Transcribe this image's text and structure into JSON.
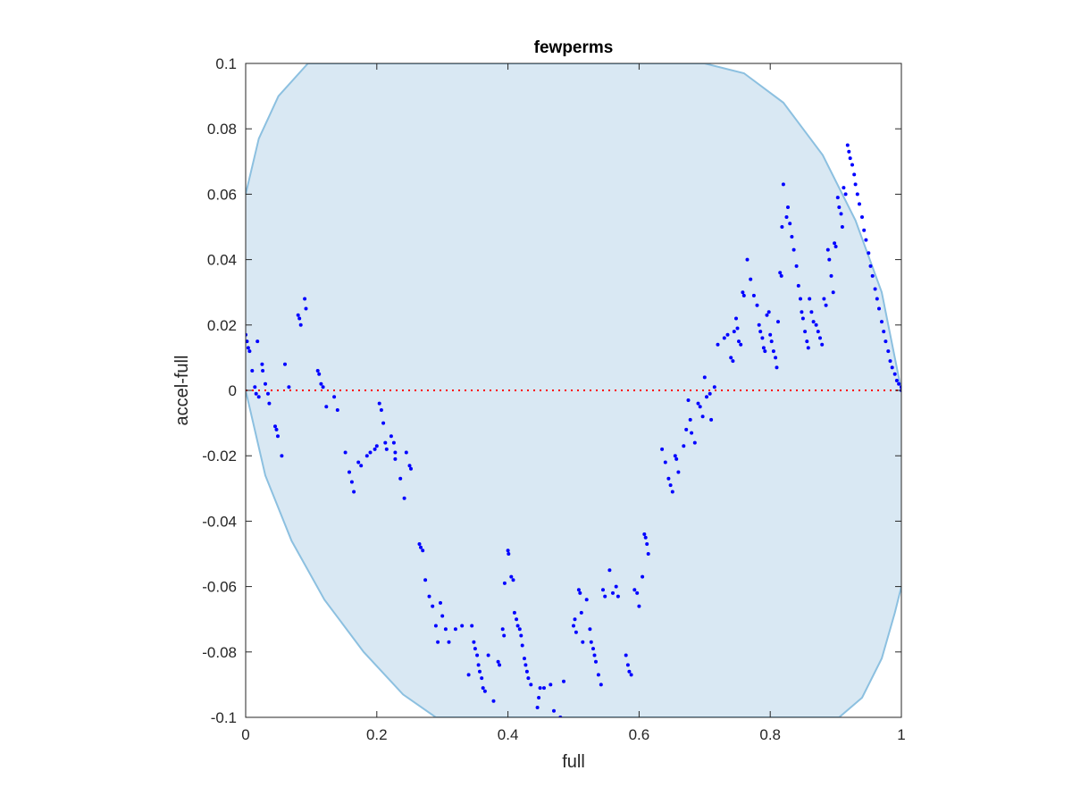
{
  "chart_data": {
    "type": "scatter",
    "title": "fewperms",
    "xlabel": "full",
    "ylabel": "accel-full",
    "xlim": [
      0,
      1
    ],
    "ylim": [
      -0.1,
      0.1
    ],
    "x_ticks": [
      "0",
      "0.2",
      "0.4",
      "0.6",
      "0.8",
      "1"
    ],
    "y_ticks": [
      "0.1",
      "0.08",
      "0.06",
      "0.04",
      "0.02",
      "0",
      "-0.02",
      "-0.04",
      "-0.06",
      "-0.08",
      "-0.1"
    ],
    "grid": false,
    "colors": {
      "points": "#0000ff",
      "band_fill": "#d9e8f3",
      "band_edge": "#8cc0e0",
      "zero_line": "#ff0000",
      "axes": "#262626"
    },
    "band": {
      "description": "shaded envelope region",
      "upper": [
        [
          0,
          0.06
        ],
        [
          0.02,
          0.077
        ],
        [
          0.05,
          0.09
        ],
        [
          0.095,
          0.1
        ],
        [
          0.7,
          0.1
        ],
        [
          0.76,
          0.097
        ],
        [
          0.82,
          0.088
        ],
        [
          0.88,
          0.072
        ],
        [
          0.93,
          0.052
        ],
        [
          0.97,
          0.03
        ],
        [
          1,
          0
        ]
      ],
      "lower": [
        [
          0,
          0
        ],
        [
          0.03,
          -0.026
        ],
        [
          0.07,
          -0.046
        ],
        [
          0.12,
          -0.064
        ],
        [
          0.18,
          -0.08
        ],
        [
          0.24,
          -0.093
        ],
        [
          0.29,
          -0.1
        ],
        [
          0.905,
          -0.1
        ],
        [
          0.94,
          -0.094
        ],
        [
          0.97,
          -0.082
        ],
        [
          0.99,
          -0.068
        ],
        [
          1,
          -0.06
        ]
      ]
    },
    "zero_line": {
      "y": 0,
      "style": "dotted"
    },
    "series": [
      {
        "points": [
          [
            0,
            0.017
          ],
          [
            0.002,
            0.015
          ],
          [
            0.004,
            0.013
          ],
          [
            0.006,
            0.012
          ],
          [
            0.01,
            0.006
          ],
          [
            0.014,
            0.001
          ],
          [
            0.016,
            -0.001
          ],
          [
            0.018,
            0.015
          ],
          [
            0.02,
            -0.002
          ],
          [
            0.025,
            0.008
          ],
          [
            0.026,
            0.006
          ],
          [
            0.03,
            0.002
          ],
          [
            0.034,
            -0.001
          ],
          [
            0.036,
            -0.004
          ],
          [
            0.045,
            -0.011
          ],
          [
            0.047,
            -0.012
          ],
          [
            0.049,
            -0.014
          ],
          [
            0.055,
            -0.02
          ],
          [
            0.06,
            0.008
          ],
          [
            0.066,
            0.001
          ],
          [
            0.08,
            0.023
          ],
          [
            0.082,
            0.022
          ],
          [
            0.084,
            0.02
          ],
          [
            0.09,
            0.028
          ],
          [
            0.092,
            0.025
          ],
          [
            0.11,
            0.006
          ],
          [
            0.112,
            0.005
          ],
          [
            0.115,
            0.002
          ],
          [
            0.118,
            0.001
          ],
          [
            0.123,
            -0.005
          ],
          [
            0.135,
            -0.002
          ],
          [
            0.14,
            -0.006
          ],
          [
            0.152,
            -0.019
          ],
          [
            0.158,
            -0.025
          ],
          [
            0.162,
            -0.028
          ],
          [
            0.165,
            -0.031
          ],
          [
            0.172,
            -0.022
          ],
          [
            0.176,
            -0.023
          ],
          [
            0.185,
            -0.02
          ],
          [
            0.19,
            -0.019
          ],
          [
            0.197,
            -0.018
          ],
          [
            0.2,
            -0.017
          ],
          [
            0.204,
            -0.004
          ],
          [
            0.207,
            -0.006
          ],
          [
            0.21,
            -0.01
          ],
          [
            0.213,
            -0.016
          ],
          [
            0.215,
            -0.018
          ],
          [
            0.222,
            -0.014
          ],
          [
            0.226,
            -0.016
          ],
          [
            0.228,
            -0.019
          ],
          [
            0.228,
            -0.021
          ],
          [
            0.236,
            -0.027
          ],
          [
            0.242,
            -0.033
          ],
          [
            0.245,
            -0.019
          ],
          [
            0.25,
            -0.023
          ],
          [
            0.252,
            -0.024
          ],
          [
            0.265,
            -0.047
          ],
          [
            0.267,
            -0.048
          ],
          [
            0.27,
            -0.049
          ],
          [
            0.274,
            -0.058
          ],
          [
            0.28,
            -0.063
          ],
          [
            0.285,
            -0.066
          ],
          [
            0.29,
            -0.072
          ],
          [
            0.293,
            -0.077
          ],
          [
            0.297,
            -0.065
          ],
          [
            0.3,
            -0.069
          ],
          [
            0.305,
            -0.073
          ],
          [
            0.31,
            -0.077
          ],
          [
            0.32,
            -0.073
          ],
          [
            0.33,
            -0.072
          ],
          [
            0.34,
            -0.087
          ],
          [
            0.345,
            -0.072
          ],
          [
            0.348,
            -0.077
          ],
          [
            0.35,
            -0.079
          ],
          [
            0.353,
            -0.081
          ],
          [
            0.355,
            -0.084
          ],
          [
            0.357,
            -0.086
          ],
          [
            0.36,
            -0.088
          ],
          [
            0.362,
            -0.091
          ],
          [
            0.365,
            -0.092
          ],
          [
            0.37,
            -0.081
          ],
          [
            0.378,
            -0.095
          ],
          [
            0.385,
            -0.083
          ],
          [
            0.387,
            -0.084
          ],
          [
            0.392,
            -0.073
          ],
          [
            0.394,
            -0.075
          ],
          [
            0.395,
            -0.059
          ],
          [
            0.4,
            -0.049
          ],
          [
            0.401,
            -0.05
          ],
          [
            0.405,
            -0.057
          ],
          [
            0.408,
            -0.058
          ],
          [
            0.41,
            -0.068
          ],
          [
            0.413,
            -0.07
          ],
          [
            0.415,
            -0.072
          ],
          [
            0.418,
            -0.073
          ],
          [
            0.42,
            -0.075
          ],
          [
            0.422,
            -0.078
          ],
          [
            0.425,
            -0.082
          ],
          [
            0.427,
            -0.084
          ],
          [
            0.429,
            -0.086
          ],
          [
            0.431,
            -0.088
          ],
          [
            0.435,
            -0.09
          ],
          [
            0.445,
            -0.097
          ],
          [
            0.447,
            -0.094
          ],
          [
            0.449,
            -0.091
          ],
          [
            0.455,
            -0.091
          ],
          [
            0.465,
            -0.09
          ],
          [
            0.47,
            -0.098
          ],
          [
            0.48,
            -0.1
          ],
          [
            0.485,
            -0.089
          ],
          [
            0.5,
            -0.072
          ],
          [
            0.502,
            -0.07
          ],
          [
            0.504,
            -0.074
          ],
          [
            0.508,
            -0.061
          ],
          [
            0.51,
            -0.062
          ],
          [
            0.512,
            -0.068
          ],
          [
            0.514,
            -0.077
          ],
          [
            0.52,
            -0.064
          ],
          [
            0.525,
            -0.073
          ],
          [
            0.527,
            -0.077
          ],
          [
            0.53,
            -0.079
          ],
          [
            0.532,
            -0.081
          ],
          [
            0.534,
            -0.083
          ],
          [
            0.538,
            -0.087
          ],
          [
            0.542,
            -0.09
          ],
          [
            0.545,
            -0.061
          ],
          [
            0.548,
            -0.063
          ],
          [
            0.555,
            -0.055
          ],
          [
            0.56,
            -0.062
          ],
          [
            0.565,
            -0.06
          ],
          [
            0.568,
            -0.063
          ],
          [
            0.58,
            -0.081
          ],
          [
            0.583,
            -0.084
          ],
          [
            0.585,
            -0.086
          ],
          [
            0.588,
            -0.087
          ],
          [
            0.593,
            -0.061
          ],
          [
            0.597,
            -0.062
          ],
          [
            0.6,
            -0.066
          ],
          [
            0.605,
            -0.057
          ],
          [
            0.608,
            -0.044
          ],
          [
            0.61,
            -0.045
          ],
          [
            0.612,
            -0.047
          ],
          [
            0.614,
            -0.05
          ],
          [
            0.635,
            -0.018
          ],
          [
            0.64,
            -0.022
          ],
          [
            0.645,
            -0.027
          ],
          [
            0.648,
            -0.029
          ],
          [
            0.651,
            -0.031
          ],
          [
            0.655,
            -0.02
          ],
          [
            0.657,
            -0.021
          ],
          [
            0.66,
            -0.025
          ],
          [
            0.668,
            -0.017
          ],
          [
            0.672,
            -0.012
          ],
          [
            0.675,
            -0.003
          ],
          [
            0.678,
            -0.009
          ],
          [
            0.68,
            -0.013
          ],
          [
            0.685,
            -0.016
          ],
          [
            0.69,
            -0.004
          ],
          [
            0.693,
            -0.005
          ],
          [
            0.697,
            -0.008
          ],
          [
            0.7,
            0.004
          ],
          [
            0.703,
            -0.002
          ],
          [
            0.708,
            -0.001
          ],
          [
            0.71,
            -0.009
          ],
          [
            0.715,
            0.001
          ],
          [
            0.72,
            0.014
          ],
          [
            0.73,
            0.016
          ],
          [
            0.735,
            0.017
          ],
          [
            0.74,
            0.01
          ],
          [
            0.743,
            0.009
          ],
          [
            0.745,
            0.018
          ],
          [
            0.748,
            0.022
          ],
          [
            0.75,
            0.019
          ],
          [
            0.752,
            0.015
          ],
          [
            0.755,
            0.014
          ],
          [
            0.758,
            0.03
          ],
          [
            0.76,
            0.029
          ],
          [
            0.765,
            0.04
          ],
          [
            0.77,
            0.034
          ],
          [
            0.775,
            0.029
          ],
          [
            0.78,
            0.026
          ],
          [
            0.783,
            0.02
          ],
          [
            0.785,
            0.018
          ],
          [
            0.788,
            0.016
          ],
          [
            0.79,
            0.013
          ],
          [
            0.792,
            0.012
          ],
          [
            0.795,
            0.023
          ],
          [
            0.798,
            0.024
          ],
          [
            0.8,
            0.017
          ],
          [
            0.802,
            0.015
          ],
          [
            0.805,
            0.012
          ],
          [
            0.808,
            0.01
          ],
          [
            0.81,
            0.007
          ],
          [
            0.812,
            0.021
          ],
          [
            0.815,
            0.036
          ],
          [
            0.817,
            0.035
          ],
          [
            0.818,
            0.05
          ],
          [
            0.82,
            0.063
          ],
          [
            0.825,
            0.053
          ],
          [
            0.827,
            0.056
          ],
          [
            0.83,
            0.051
          ],
          [
            0.833,
            0.047
          ],
          [
            0.836,
            0.043
          ],
          [
            0.84,
            0.038
          ],
          [
            0.843,
            0.032
          ],
          [
            0.846,
            0.028
          ],
          [
            0.848,
            0.024
          ],
          [
            0.85,
            0.022
          ],
          [
            0.853,
            0.018
          ],
          [
            0.856,
            0.015
          ],
          [
            0.858,
            0.013
          ],
          [
            0.86,
            0.028
          ],
          [
            0.863,
            0.024
          ],
          [
            0.866,
            0.021
          ],
          [
            0.87,
            0.02
          ],
          [
            0.873,
            0.018
          ],
          [
            0.876,
            0.016
          ],
          [
            0.879,
            0.014
          ],
          [
            0.882,
            0.028
          ],
          [
            0.885,
            0.026
          ],
          [
            0.888,
            0.043
          ],
          [
            0.89,
            0.04
          ],
          [
            0.893,
            0.035
          ],
          [
            0.896,
            0.03
          ],
          [
            0.898,
            0.045
          ],
          [
            0.9,
            0.044
          ],
          [
            0.903,
            0.059
          ],
          [
            0.905,
            0.056
          ],
          [
            0.908,
            0.054
          ],
          [
            0.91,
            0.05
          ],
          [
            0.912,
            0.062
          ],
          [
            0.915,
            0.06
          ],
          [
            0.918,
            0.075
          ],
          [
            0.92,
            0.073
          ],
          [
            0.922,
            0.071
          ],
          [
            0.925,
            0.069
          ],
          [
            0.928,
            0.066
          ],
          [
            0.93,
            0.063
          ],
          [
            0.933,
            0.06
          ],
          [
            0.936,
            0.057
          ],
          [
            0.94,
            0.053
          ],
          [
            0.943,
            0.049
          ],
          [
            0.946,
            0.046
          ],
          [
            0.95,
            0.042
          ],
          [
            0.953,
            0.038
          ],
          [
            0.956,
            0.035
          ],
          [
            0.96,
            0.031
          ],
          [
            0.963,
            0.028
          ],
          [
            0.966,
            0.025
          ],
          [
            0.97,
            0.021
          ],
          [
            0.973,
            0.018
          ],
          [
            0.976,
            0.015
          ],
          [
            0.98,
            0.012
          ],
          [
            0.983,
            0.009
          ],
          [
            0.986,
            0.007
          ],
          [
            0.99,
            0.005
          ],
          [
            0.993,
            0.003
          ],
          [
            0.996,
            0.002
          ],
          [
            1,
            0.001
          ],
          [
            1,
            0
          ]
        ]
      }
    ]
  }
}
